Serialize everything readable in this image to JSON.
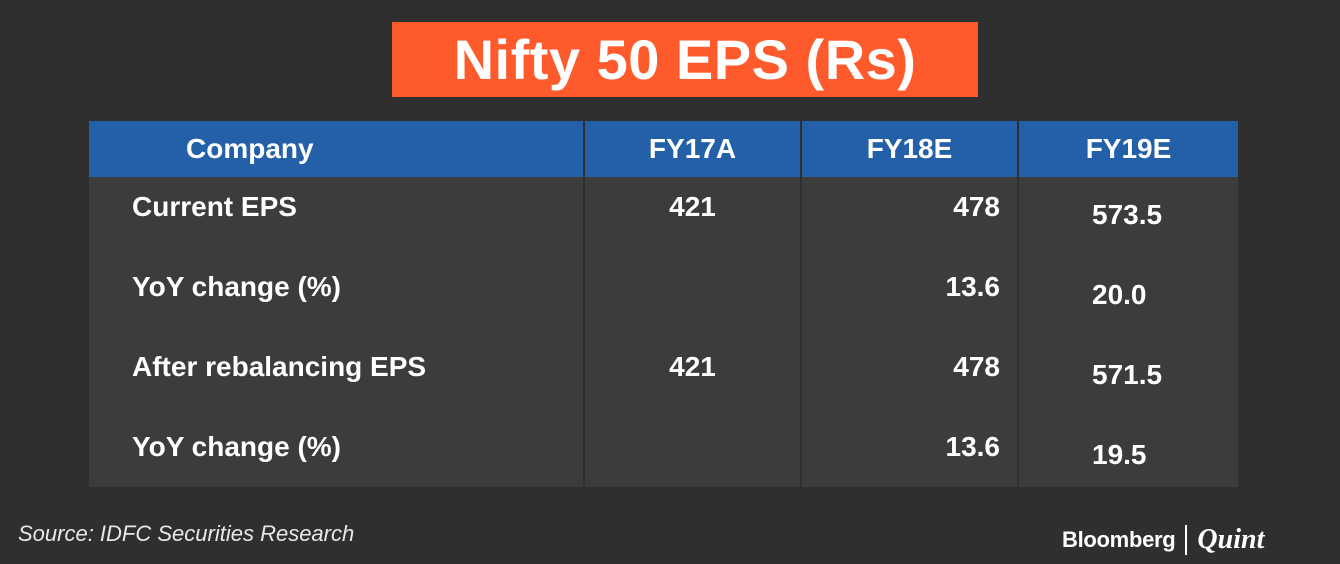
{
  "chart_data": {
    "type": "table",
    "title": "Nifty 50 EPS (Rs)",
    "columns": [
      "Company",
      "FY17A",
      "FY18E",
      "FY19E"
    ],
    "rows": [
      {
        "label": "Current EPS",
        "values": [
          "421",
          "478",
          "573.5"
        ]
      },
      {
        "label": "YoY change (%)",
        "values": [
          "",
          "13.6",
          "20.0"
        ]
      },
      {
        "label": "After rebalancing EPS",
        "values": [
          "421",
          "478",
          "571.5"
        ]
      },
      {
        "label": "YoY change (%)",
        "values": [
          "",
          "13.6",
          "19.5"
        ]
      }
    ]
  },
  "footer": {
    "source": "Source: IDFC Securities Research",
    "logo_left": "Bloomberg",
    "logo_right": "Quint"
  },
  "colors": {
    "background": "#2f2f2f",
    "title_bg": "#ff5a2b",
    "header_bg": "#2360a8",
    "table_bg": "#3c3c3c",
    "text": "#ffffff"
  }
}
